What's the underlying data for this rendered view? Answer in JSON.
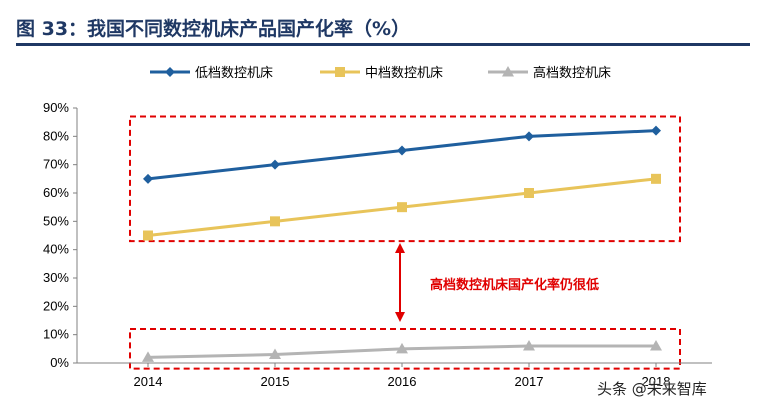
{
  "figure": {
    "title": "图  33：我国不同数控机床产品国产化率（%）",
    "title_color": "#1f3864"
  },
  "chart_data": {
    "type": "line",
    "title": "",
    "xlabel": "",
    "ylabel": "",
    "categories": [
      "2014",
      "2015",
      "2016",
      "2017",
      "2018"
    ],
    "ylim": [
      0,
      90
    ],
    "yticks": [
      0,
      10,
      20,
      30,
      40,
      50,
      60,
      70,
      80,
      90
    ],
    "ytick_format": "percent",
    "grid": false,
    "legend_position": "top",
    "series": [
      {
        "name": "低档数控机床",
        "values": [
          65,
          70,
          75,
          80,
          82
        ],
        "color": "#1f5f9e",
        "marker": "diamond"
      },
      {
        "name": "中档数控机床",
        "values": [
          45,
          50,
          55,
          60,
          65
        ],
        "color": "#e8c45a",
        "marker": "square"
      },
      {
        "name": "高档数控机床",
        "values": [
          2,
          3,
          5,
          6,
          6
        ],
        "color": "#b4b4b4",
        "marker": "triangle"
      }
    ],
    "annotation": {
      "text": "高档数控机床国产化率仍很低",
      "color": "#e00000",
      "upper_box_range": [
        43,
        87
      ],
      "lower_box_range": [
        -2,
        12
      ]
    }
  },
  "watermark": "头条 @未来智库"
}
